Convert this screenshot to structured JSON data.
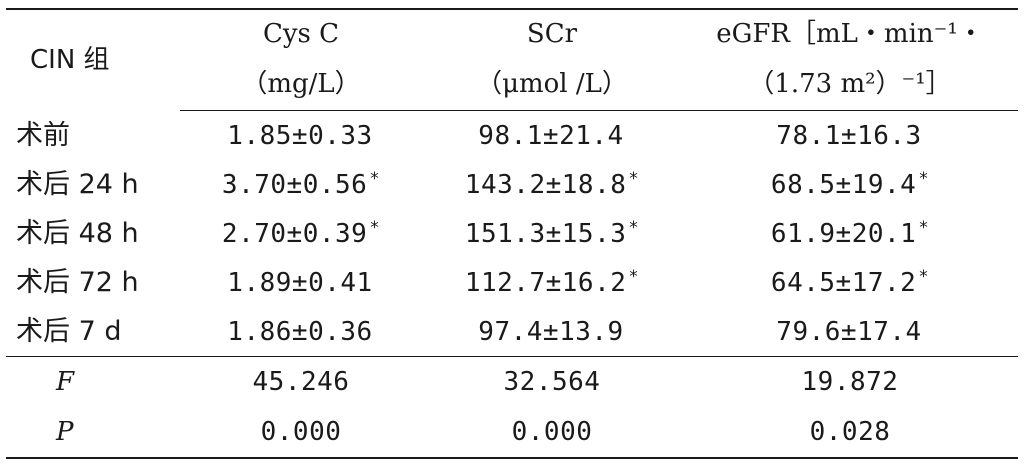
{
  "table": {
    "group_header": "CIN 组",
    "columns": [
      {
        "name": "Cys C",
        "unit": "（mg/L）"
      },
      {
        "name": "SCr",
        "unit": "（μmol /L）"
      },
      {
        "name": "eGFR［mL・min⁻¹・",
        "unit": "（1.73 m²）⁻¹］"
      }
    ],
    "rows": [
      {
        "label": "术前",
        "values": [
          "1.85±0.33",
          "98.1±21.4",
          "78.1±16.3"
        ],
        "marks": [
          "",
          "",
          ""
        ]
      },
      {
        "label": "术后 24 h",
        "values": [
          "3.70±0.56",
          "143.2±18.8",
          "68.5±19.4"
        ],
        "marks": [
          "*",
          "*",
          "*"
        ]
      },
      {
        "label": "术后 48 h",
        "values": [
          "2.70±0.39",
          "151.3±15.3",
          "61.9±20.1"
        ],
        "marks": [
          "*",
          "*",
          "*"
        ]
      },
      {
        "label": "术后 72 h",
        "values": [
          "1.89±0.41",
          "112.7±16.2",
          "64.5±17.2"
        ],
        "marks": [
          "",
          "*",
          "*"
        ]
      },
      {
        "label": "术后 7 d",
        "values": [
          "1.86±0.36",
          "97.4±13.9",
          "79.6±17.4"
        ],
        "marks": [
          "",
          "",
          ""
        ]
      }
    ],
    "stats": [
      {
        "label": "F",
        "values": [
          "45.246",
          "32.564",
          "19.872"
        ]
      },
      {
        "label": "P",
        "values": [
          "0.000",
          "0.000",
          "0.028"
        ]
      }
    ]
  }
}
